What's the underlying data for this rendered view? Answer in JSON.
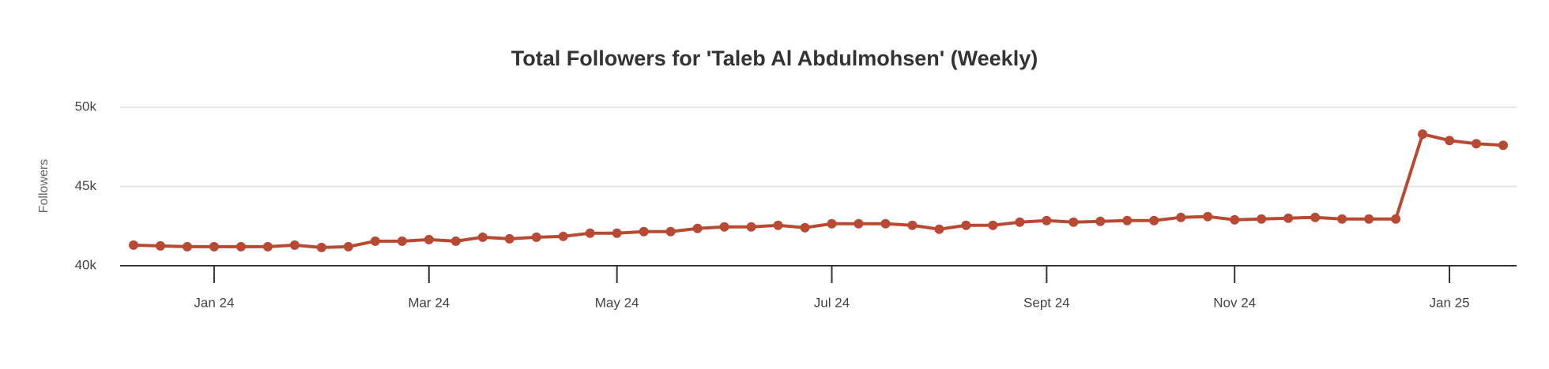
{
  "chart_data": {
    "type": "line",
    "title": "Total Followers for 'Taleb Al Abdulmohsen' (Weekly)",
    "y_label": "Followers",
    "categories": [
      null,
      null,
      null,
      "Jan 24",
      null,
      null,
      null,
      null,
      null,
      null,
      null,
      "Mar 24",
      null,
      null,
      null,
      null,
      null,
      null,
      "May 24",
      null,
      null,
      null,
      null,
      null,
      null,
      null,
      "Jul 24",
      null,
      null,
      null,
      null,
      null,
      null,
      null,
      "Sept 24",
      null,
      null,
      null,
      null,
      null,
      null,
      "Nov 24",
      null,
      null,
      null,
      null,
      null,
      null,
      null,
      "Jan 25",
      null,
      null
    ],
    "values": [
      41300,
      41250,
      41200,
      41200,
      41200,
      41200,
      41300,
      41150,
      41200,
      41550,
      41550,
      41650,
      41550,
      41800,
      41700,
      41800,
      41850,
      42050,
      42050,
      42150,
      42150,
      42350,
      42450,
      42450,
      42550,
      42400,
      42650,
      42650,
      42650,
      42550,
      42300,
      42550,
      42550,
      42750,
      42850,
      42750,
      42800,
      42850,
      42850,
      43050,
      43100,
      42900,
      42950,
      43000,
      43050,
      42950,
      42950,
      42950,
      48300,
      47900,
      47700,
      47600
    ],
    "color": "#b84a33",
    "ylim": [
      40000,
      50000
    ],
    "yticks": [
      {
        "value": 40000,
        "label": "40k"
      },
      {
        "value": 45000,
        "label": "45k"
      },
      {
        "value": 50000,
        "label": "50k"
      }
    ],
    "grid": true
  }
}
